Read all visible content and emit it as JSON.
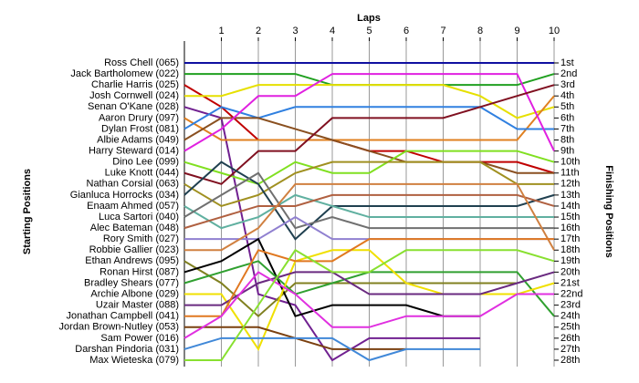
{
  "chart_data": {
    "type": "line",
    "title": "Laps",
    "ylabel": "Starting Positions",
    "y2label": "Finishing Positions",
    "x": [
      0,
      1,
      2,
      3,
      4,
      5,
      6,
      7,
      8,
      9,
      10
    ],
    "xlim": [
      0,
      10
    ],
    "xticks": [
      1,
      2,
      3,
      4,
      5,
      6,
      7,
      8,
      9,
      10
    ],
    "ylim": [
      1,
      28
    ],
    "inverted": true,
    "grid": true,
    "yticks": [
      {
        "value": 1,
        "label": "1st"
      },
      {
        "value": 2,
        "label": "2nd"
      },
      {
        "value": 3,
        "label": "3rd"
      },
      {
        "value": 4,
        "label": "4th"
      },
      {
        "value": 5,
        "label": "5th"
      },
      {
        "value": 6,
        "label": "6th"
      },
      {
        "value": 7,
        "label": "7th"
      },
      {
        "value": 8,
        "label": "8th"
      },
      {
        "value": 9,
        "label": "9th"
      },
      {
        "value": 10,
        "label": "10th"
      },
      {
        "value": 11,
        "label": "11th"
      },
      {
        "value": 12,
        "label": "12th"
      },
      {
        "value": 13,
        "label": "13th"
      },
      {
        "value": 14,
        "label": "14th"
      },
      {
        "value": 15,
        "label": "15th"
      },
      {
        "value": 16,
        "label": "16th"
      },
      {
        "value": 17,
        "label": "17th"
      },
      {
        "value": 18,
        "label": "18th"
      },
      {
        "value": 19,
        "label": "19th"
      },
      {
        "value": 20,
        "label": "20th"
      },
      {
        "value": 21,
        "label": "21st"
      },
      {
        "value": 22,
        "label": "22nd"
      },
      {
        "value": 23,
        "label": "23rd"
      },
      {
        "value": 24,
        "label": "24th"
      },
      {
        "value": 25,
        "label": "25th"
      },
      {
        "value": 26,
        "label": "26th"
      },
      {
        "value": 27,
        "label": "27th"
      },
      {
        "value": 28,
        "label": "28th"
      }
    ],
    "series": [
      {
        "name": "Ross Chell (065)",
        "color": "#1010a0",
        "values": [
          1,
          1,
          1,
          1,
          1,
          1,
          1,
          1,
          1,
          1,
          1
        ]
      },
      {
        "name": "Jack Bartholomew (022)",
        "color": "#20a020",
        "values": [
          2,
          2,
          2,
          2,
          3,
          3,
          3,
          3,
          3,
          3,
          2
        ]
      },
      {
        "name": "Charlie Harris (025)",
        "color": "#c00000",
        "values": [
          3,
          5,
          8,
          8,
          8,
          9,
          9,
          10,
          10,
          10,
          11
        ]
      },
      {
        "name": "Josh Cornwell (024)",
        "color": "#e6e000",
        "values": [
          4,
          4,
          3,
          3,
          3,
          3,
          3,
          3,
          4,
          6,
          5
        ]
      },
      {
        "name": "Senan O'Kane (028)",
        "color": "#702090",
        "values": [
          5,
          6,
          22,
          23,
          28,
          26,
          26,
          26,
          26,
          null,
          null
        ]
      },
      {
        "name": "Aaron Drury (097)",
        "color": "#e08020",
        "values": [
          6,
          8,
          8,
          8,
          8,
          8,
          8,
          8,
          8,
          8,
          4
        ]
      },
      {
        "name": "Dylan Frost (081)",
        "color": "#3080e0",
        "values": [
          7,
          5,
          6,
          5,
          5,
          5,
          5,
          5,
          5,
          7,
          7
        ]
      },
      {
        "name": "Albie Adams (049)",
        "color": "#8a5020",
        "values": [
          8,
          6,
          6,
          7,
          8,
          9,
          10,
          10,
          10,
          11,
          11
        ]
      },
      {
        "name": "Harry Steward (014)",
        "color": "#e020e0",
        "values": [
          9,
          7,
          4,
          4,
          2,
          2,
          2,
          2,
          2,
          2,
          9
        ]
      },
      {
        "name": "Dino Lee (099)",
        "color": "#80e020",
        "values": [
          10,
          11,
          12,
          10,
          11,
          11,
          9,
          9,
          9,
          9,
          10
        ]
      },
      {
        "name": "Luke Knott (044)",
        "color": "#801020",
        "values": [
          11,
          12,
          9,
          9,
          6,
          6,
          6,
          6,
          5,
          4,
          3
        ]
      },
      {
        "name": "Nathan Corsial (063)",
        "color": "#a09020",
        "values": [
          12,
          14,
          13,
          11,
          10,
          10,
          10,
          10,
          10,
          12,
          12
        ]
      },
      {
        "name": "Gianluca Horrocks (034)",
        "color": "#204050",
        "values": [
          13,
          10,
          12,
          17,
          14,
          14,
          14,
          14,
          14,
          14,
          13
        ]
      },
      {
        "name": "Enaam Ahmed (057)",
        "color": "#60b0a0",
        "values": [
          14,
          16,
          15,
          13,
          14,
          15,
          15,
          15,
          15,
          15,
          15
        ]
      },
      {
        "name": "Luca Sartori (040)",
        "color": "#707070",
        "values": [
          15,
          13,
          11,
          16,
          15,
          16,
          16,
          16,
          16,
          16,
          16
        ]
      },
      {
        "name": "Alec Bateman (048)",
        "color": "#b06040",
        "values": [
          16,
          15,
          14,
          14,
          13,
          13,
          13,
          13,
          13,
          13,
          14
        ]
      },
      {
        "name": "Rory Smith (027)",
        "color": "#9080d0",
        "values": [
          17,
          17,
          17,
          15,
          17,
          17,
          17,
          17,
          17,
          17,
          17
        ]
      },
      {
        "name": "Robbie Gallier (023)",
        "color": "#d08040",
        "values": [
          18,
          18,
          16,
          12,
          12,
          12,
          12,
          12,
          12,
          12,
          18
        ]
      },
      {
        "name": "Ethan Andrews (095)",
        "color": "#808020",
        "values": [
          19,
          21,
          24,
          21,
          21,
          21,
          21,
          21,
          21,
          21,
          null
        ]
      },
      {
        "name": "Ronan Hirst (087)",
        "color": "#000000",
        "values": [
          20,
          19,
          17,
          24,
          23,
          23,
          23,
          24,
          24,
          null,
          null
        ]
      },
      {
        "name": "Bradley Shears (077)",
        "color": "#30a030",
        "values": [
          21,
          20,
          19,
          22,
          21,
          20,
          20,
          20,
          20,
          20,
          24
        ]
      },
      {
        "name": "Archie Albone (029)",
        "color": "#f0e000",
        "values": [
          22,
          22,
          27,
          19,
          18,
          18,
          21,
          22,
          22,
          22,
          21
        ]
      },
      {
        "name": "Uzair Master (088)",
        "color": "#6a2a80",
        "values": [
          23,
          23,
          21,
          20,
          20,
          22,
          22,
          22,
          22,
          21,
          20
        ]
      },
      {
        "name": "Jonathan Campbell (041)",
        "color": "#e07820",
        "values": [
          24,
          24,
          18,
          19,
          19,
          17,
          17,
          17,
          17,
          17,
          17
        ]
      },
      {
        "name": "Jordan Brown-Nutley (053)",
        "color": "#7a4010",
        "values": [
          25,
          25,
          25,
          26,
          27,
          27,
          27,
          null,
          null,
          null,
          null
        ]
      },
      {
        "name": "Sam Power (016)",
        "color": "#e030e0",
        "values": [
          26,
          24,
          20,
          22,
          25,
          25,
          24,
          24,
          24,
          22,
          22
        ]
      },
      {
        "name": "Darshan Pindoria (031)",
        "color": "#4088d8",
        "values": [
          27,
          26,
          26,
          26,
          26,
          28,
          27,
          27,
          27,
          null,
          null
        ]
      },
      {
        "name": "Max Wieteska (079)",
        "color": "#88e030",
        "values": [
          28,
          28,
          23,
          18,
          20,
          20,
          18,
          18,
          18,
          18,
          19
        ]
      }
    ]
  }
}
